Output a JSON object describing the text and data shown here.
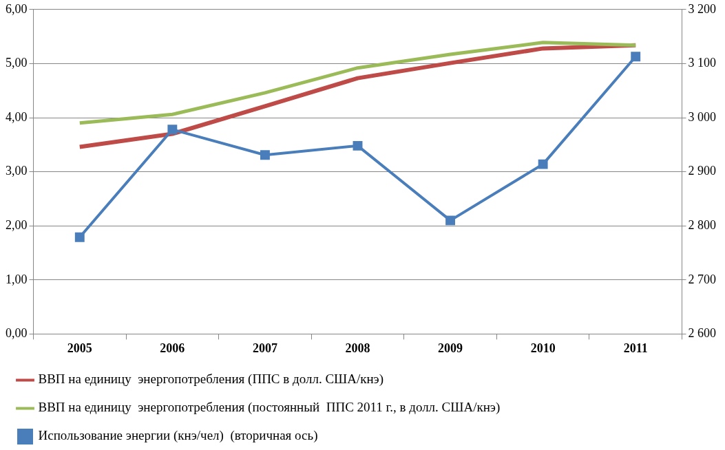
{
  "chart_data": {
    "type": "line",
    "categories": [
      "2005",
      "2006",
      "2007",
      "2008",
      "2009",
      "2010",
      "2011"
    ],
    "series": [
      {
        "name": "ВВП на единицу  энергопотребления (ППС в долл. США/кнэ)",
        "color": "#be4b48",
        "marker": "none",
        "values": [
          3.46,
          3.7,
          4.21,
          4.73,
          5.01,
          5.28,
          5.34
        ]
      },
      {
        "name": "ВВП на единицу  энергопотребления (постоянный  ППС 2011 г., в долл. США/кнэ)",
        "color": "#9bbb59",
        "marker": "none",
        "values": [
          3.9,
          4.06,
          4.46,
          4.92,
          5.17,
          5.39,
          5.34
        ]
      },
      {
        "name": "Использование энергии (кнэ/чел)  (вторичная ось)",
        "color": "#4a7ebb",
        "marker": "square",
        "axis": "y2",
        "values": [
          2779,
          2978,
          2931,
          2948,
          2810,
          2914,
          3113
        ]
      }
    ],
    "ylim": [
      0,
      6
    ],
    "yticks": [
      {
        "value": 0,
        "label": "0,00"
      },
      {
        "value": 1,
        "label": "1,00"
      },
      {
        "value": 2,
        "label": "2,00"
      },
      {
        "value": 3,
        "label": "3,00"
      },
      {
        "value": 4,
        "label": "4,00"
      },
      {
        "value": 5,
        "label": "5,00"
      },
      {
        "value": 6,
        "label": "6,00"
      }
    ],
    "y2lim": [
      2600,
      3200
    ],
    "y2ticks": [
      {
        "value": 2600,
        "label": "2 600"
      },
      {
        "value": 2700,
        "label": "2 700"
      },
      {
        "value": 2800,
        "label": "2 800"
      },
      {
        "value": 2900,
        "label": "2 900"
      },
      {
        "value": 3000,
        "label": "3 000"
      },
      {
        "value": 3100,
        "label": "3 100"
      },
      {
        "value": 3200,
        "label": "3 200"
      }
    ],
    "grid": "y",
    "legend": "bottom",
    "line_style": "solid"
  }
}
